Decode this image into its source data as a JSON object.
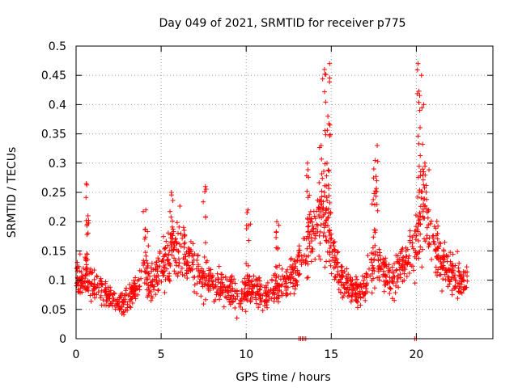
{
  "chart_data": {
    "type": "scatter",
    "title": "Day 049 of 2021, SRMTID for receiver p775",
    "xlabel": "GPS time / hours",
    "ylabel": "SRMTID / TECUs",
    "xlim": [
      0,
      24.5
    ],
    "ylim": [
      0,
      0.5
    ],
    "grid": true,
    "x_ticks": [
      0,
      5,
      10,
      15,
      20
    ],
    "x_tick_labels": [
      "0",
      "5",
      "10",
      "15",
      "20"
    ],
    "y_ticks": [
      0,
      0.05,
      0.1,
      0.15,
      0.2,
      0.25,
      0.3,
      0.35,
      0.4,
      0.45,
      0.5
    ],
    "y_tick_labels": [
      "0",
      "0.05",
      "0.1",
      "0.15",
      "0.2",
      "0.25",
      "0.3",
      "0.35",
      "0.4",
      "0.45",
      "0.5"
    ],
    "marker": "plus",
    "series": [
      {
        "name": "SRMTID",
        "color": "#ff0000",
        "trend": [
          [
            0.0,
            0.11
          ],
          [
            0.5,
            0.1
          ],
          [
            1.0,
            0.09
          ],
          [
            1.5,
            0.08
          ],
          [
            2.0,
            0.07
          ],
          [
            2.5,
            0.06
          ],
          [
            3.0,
            0.065
          ],
          [
            3.5,
            0.09
          ],
          [
            4.0,
            0.11
          ],
          [
            4.5,
            0.1
          ],
          [
            5.0,
            0.12
          ],
          [
            5.5,
            0.15
          ],
          [
            6.0,
            0.16
          ],
          [
            6.5,
            0.14
          ],
          [
            7.0,
            0.12
          ],
          [
            7.5,
            0.1
          ],
          [
            8.0,
            0.09
          ],
          [
            8.5,
            0.09
          ],
          [
            9.0,
            0.085
          ],
          [
            9.5,
            0.07
          ],
          [
            10.0,
            0.08
          ],
          [
            10.5,
            0.09
          ],
          [
            11.0,
            0.07
          ],
          [
            11.5,
            0.08
          ],
          [
            12.0,
            0.09
          ],
          [
            12.5,
            0.1
          ],
          [
            13.0,
            0.12
          ],
          [
            13.5,
            0.15
          ],
          [
            14.0,
            0.2
          ],
          [
            14.5,
            0.22
          ],
          [
            15.0,
            0.17
          ],
          [
            15.5,
            0.1
          ],
          [
            16.0,
            0.09
          ],
          [
            16.5,
            0.08
          ],
          [
            17.0,
            0.09
          ],
          [
            17.5,
            0.14
          ],
          [
            18.0,
            0.12
          ],
          [
            18.5,
            0.1
          ],
          [
            19.0,
            0.12
          ],
          [
            19.5,
            0.13
          ],
          [
            20.0,
            0.17
          ],
          [
            20.5,
            0.22
          ],
          [
            21.0,
            0.17
          ],
          [
            21.5,
            0.13
          ],
          [
            22.0,
            0.11
          ],
          [
            22.5,
            0.1
          ],
          [
            23.0,
            0.1
          ]
        ],
        "spikes": [
          [
            14.6,
            0.46
          ],
          [
            14.9,
            0.47
          ],
          [
            14.4,
            0.33
          ],
          [
            14.8,
            0.38
          ],
          [
            13.6,
            0.3
          ],
          [
            17.5,
            0.29
          ],
          [
            17.7,
            0.33
          ],
          [
            20.1,
            0.47
          ],
          [
            20.3,
            0.45
          ],
          [
            20.2,
            0.39
          ],
          [
            20.5,
            0.3
          ],
          [
            5.6,
            0.25
          ],
          [
            0.6,
            0.265
          ],
          [
            7.6,
            0.26
          ],
          [
            10.1,
            0.22
          ],
          [
            11.8,
            0.2
          ],
          [
            4.1,
            0.22
          ],
          [
            0.7,
            0.21
          ]
        ],
        "zero_points": [
          13.1,
          13.2,
          13.3,
          13.4,
          13.5,
          19.9,
          20.0
        ],
        "x_range": [
          0.0,
          23.0
        ],
        "y_range": [
          0.015,
          0.475
        ]
      }
    ]
  }
}
